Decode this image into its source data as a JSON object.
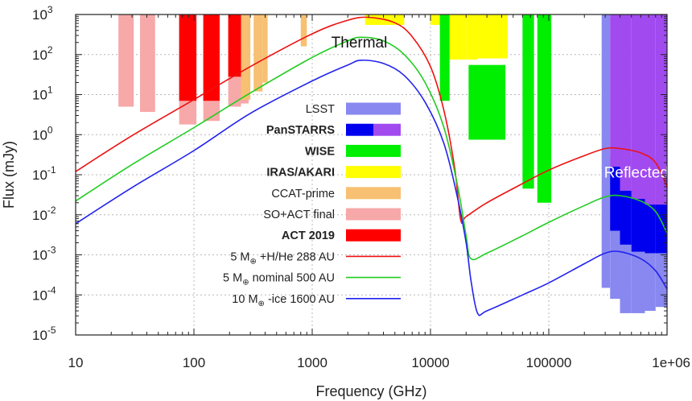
{
  "chart_data": {
    "type": "line",
    "title": "",
    "xlabel": "Frequency (GHz)",
    "ylabel": "Flux (mJy)",
    "x_scale": "log",
    "y_scale": "log",
    "xlim": [
      10,
      1000000
    ],
    "ylim": [
      1e-05,
      1000
    ],
    "grid": true,
    "legend_position": "center",
    "x_ticks": [
      {
        "value": 10,
        "label": "10"
      },
      {
        "value": 100,
        "label": "100"
      },
      {
        "value": 1000,
        "label": "1000"
      },
      {
        "value": 10000,
        "label": "10000"
      },
      {
        "value": 100000,
        "label": "100000"
      },
      {
        "value": 1000000,
        "label": "1e+06"
      }
    ],
    "y_ticks": [
      {
        "value": 1e-05,
        "mant": "10",
        "exp": "-5"
      },
      {
        "value": 0.0001,
        "mant": "10",
        "exp": "-4"
      },
      {
        "value": 0.001,
        "mant": "10",
        "exp": "-3"
      },
      {
        "value": 0.01,
        "mant": "10",
        "exp": "-2"
      },
      {
        "value": 0.1,
        "mant": "10",
        "exp": "-1"
      },
      {
        "value": 1,
        "mant": "10",
        "exp": "0"
      },
      {
        "value": 10,
        "mant": "10",
        "exp": "1"
      },
      {
        "value": 100,
        "mant": "10",
        "exp": "2"
      },
      {
        "value": 1000,
        "mant": "10",
        "exp": "3"
      }
    ],
    "annotations": [
      {
        "text": "Thermal",
        "x": 2500,
        "y": 150,
        "color": "#111111"
      },
      {
        "text": "Reflected",
        "x": 550000,
        "y": 0.085,
        "color": "#ffffff"
      }
    ],
    "sensitivity_regions": [
      {
        "name": "SO+ACT final",
        "color": "#f7a8a8",
        "bands": [
          {
            "x0": 23,
            "x1": 31,
            "y_min": 5,
            "y_max": 1000
          },
          {
            "x0": 35,
            "x1": 47,
            "y_min": 3.7,
            "y_max": 1000
          },
          {
            "x0": 75,
            "x1": 105,
            "y_min": 1.8,
            "y_max": 1000
          },
          {
            "x0": 120,
            "x1": 165,
            "y_min": 2.2,
            "y_max": 1000
          },
          {
            "x0": 195,
            "x1": 250,
            "y_min": 5,
            "y_max": 1000
          },
          {
            "x0": 250,
            "x1": 290,
            "y_min": 6,
            "y_max": 1000
          }
        ]
      },
      {
        "name": "CCAT-prime",
        "color": "#f7c072",
        "bands": [
          {
            "x0": 250,
            "x1": 300,
            "y_min": 7.5,
            "y_max": 1000
          },
          {
            "x0": 320,
            "x1": 380,
            "y_min": 12,
            "y_max": 1000
          },
          {
            "x0": 380,
            "x1": 420,
            "y_min": 20,
            "y_max": 1000
          },
          {
            "x0": 800,
            "x1": 900,
            "y_min": 160,
            "y_max": 1000
          }
        ]
      },
      {
        "name": "ACT 2019",
        "color": "#ff0000",
        "bands": [
          {
            "x0": 75,
            "x1": 105,
            "y_min": 7,
            "y_max": 1000
          },
          {
            "x0": 120,
            "x1": 165,
            "y_min": 7,
            "y_max": 1000
          },
          {
            "x0": 195,
            "x1": 250,
            "y_min": 28,
            "y_max": 1000
          }
        ]
      },
      {
        "name": "IRAS/AKARI",
        "color": "#ffff00",
        "bands": [
          {
            "x0": 2800,
            "x1": 6000,
            "y_min": 550,
            "y_max": 1000
          },
          {
            "x0": 10000,
            "x1": 14500,
            "y_min": 550,
            "y_max": 1000
          },
          {
            "x0": 14500,
            "x1": 20000,
            "y_min": 75,
            "y_max": 1000
          },
          {
            "x0": 20000,
            "x1": 25000,
            "y_min": 75,
            "y_max": 1000
          },
          {
            "x0": 25000,
            "x1": 45000,
            "y_min": 80,
            "y_max": 1000
          }
        ]
      },
      {
        "name": "WISE",
        "color": "#00ee00",
        "bands": [
          {
            "x0": 12000,
            "x1": 14500,
            "y_min": 7,
            "y_max": 1000
          },
          {
            "x0": 21000,
            "x1": 43000,
            "y_min": 0.75,
            "y_max": 55
          },
          {
            "x0": 60000,
            "x1": 75000,
            "y_min": 0.045,
            "y_max": 1000
          },
          {
            "x0": 80000,
            "x1": 105000,
            "y_min": 0.02,
            "y_max": 1000
          }
        ]
      },
      {
        "name": "LSST",
        "color": "#8888f0",
        "bands": [
          {
            "x0": 280000,
            "x1": 330000,
            "y_min": 0.00015,
            "y_max": 1000
          },
          {
            "x0": 330000,
            "x1": 400000,
            "y_min": 8e-05,
            "y_max": 0.3
          },
          {
            "x0": 400000,
            "x1": 500000,
            "y_min": 3.5e-05,
            "y_max": 0.3
          },
          {
            "x0": 500000,
            "x1": 650000,
            "y_min": 3.5e-05,
            "y_max": 0.3
          },
          {
            "x0": 650000,
            "x1": 800000,
            "y_min": 4e-05,
            "y_max": 0.3
          },
          {
            "x0": 800000,
            "x1": 1000000,
            "y_min": 5e-05,
            "y_max": 0.3
          }
        ]
      },
      {
        "name": "PanSTAARS (blue)",
        "color": "#0000ee",
        "bands": [
          {
            "x0": 330000,
            "x1": 400000,
            "y_min": 0.004,
            "y_max": 0.16
          },
          {
            "x0": 400000,
            "x1": 500000,
            "y_min": 0.0018,
            "y_max": 0.04
          },
          {
            "x0": 500000,
            "x1": 650000,
            "y_min": 0.0012,
            "y_max": 0.025
          },
          {
            "x0": 650000,
            "x1": 800000,
            "y_min": 0.0011,
            "y_max": 0.018
          },
          {
            "x0": 800000,
            "x1": 1000000,
            "y_min": 0.0011,
            "y_max": 0.018
          }
        ]
      },
      {
        "name": "PanSTAARS (purple)",
        "color": "#a14af0",
        "bands": [
          {
            "x0": 330000,
            "x1": 400000,
            "y_min": 0.16,
            "y_max": 1000
          },
          {
            "x0": 400000,
            "x1": 500000,
            "y_min": 0.04,
            "y_max": 1000
          },
          {
            "x0": 500000,
            "x1": 650000,
            "y_min": 0.025,
            "y_max": 1000
          },
          {
            "x0": 650000,
            "x1": 800000,
            "y_min": 0.018,
            "y_max": 1000
          },
          {
            "x0": 800000,
            "x1": 1000000,
            "y_min": 0.018,
            "y_max": 1000
          }
        ]
      }
    ],
    "series": [
      {
        "name": "5 M⊕ +H/He 288 AU",
        "color": "#ee1111",
        "points": [
          [
            10,
            0.12
          ],
          [
            30,
            0.95
          ],
          [
            100,
            7.5
          ],
          [
            300,
            50
          ],
          [
            1000,
            330
          ],
          [
            2000,
            720
          ],
          [
            3000,
            850
          ],
          [
            5000,
            620
          ],
          [
            7000,
            280
          ],
          [
            10000,
            50
          ],
          [
            13000,
            4
          ],
          [
            16000,
            0.15
          ],
          [
            18000,
            0.0075
          ],
          [
            20000,
            0.009
          ],
          [
            30000,
            0.02
          ],
          [
            60000,
            0.06
          ],
          [
            100000,
            0.13
          ],
          [
            200000,
            0.3
          ],
          [
            300000,
            0.45
          ],
          [
            400000,
            0.45
          ],
          [
            600000,
            0.35
          ],
          [
            800000,
            0.2
          ],
          [
            1000000,
            0.05
          ]
        ]
      },
      {
        "name": "5 M⊕ nominal 500 AU",
        "color": "#22cc22",
        "points": [
          [
            10,
            0.022
          ],
          [
            30,
            0.18
          ],
          [
            100,
            1.5
          ],
          [
            300,
            11
          ],
          [
            1000,
            85
          ],
          [
            2000,
            220
          ],
          [
            2600,
            270
          ],
          [
            4000,
            220
          ],
          [
            6000,
            100
          ],
          [
            9000,
            20
          ],
          [
            13000,
            1.5
          ],
          [
            17000,
            0.05
          ],
          [
            20000,
            0.003
          ],
          [
            22000,
            0.0008
          ],
          [
            30000,
            0.0011
          ],
          [
            60000,
            0.003
          ],
          [
            100000,
            0.0065
          ],
          [
            200000,
            0.017
          ],
          [
            300000,
            0.028
          ],
          [
            400000,
            0.03
          ],
          [
            600000,
            0.022
          ],
          [
            800000,
            0.012
          ],
          [
            1000000,
            0.0035
          ]
        ]
      },
      {
        "name": "10 M⊕ -ice 1600 AU",
        "color": "#2222ee",
        "points": [
          [
            10,
            0.006
          ],
          [
            30,
            0.048
          ],
          [
            100,
            0.4
          ],
          [
            300,
            3.4
          ],
          [
            1000,
            22
          ],
          [
            2000,
            55
          ],
          [
            2600,
            72
          ],
          [
            4000,
            60
          ],
          [
            6000,
            30
          ],
          [
            9000,
            6.5
          ],
          [
            13000,
            0.6
          ],
          [
            17000,
            0.025
          ],
          [
            20000,
            0.002
          ],
          [
            22000,
            0.00023
          ],
          [
            25000,
            3.5e-05
          ],
          [
            30000,
            4e-05
          ],
          [
            60000,
            0.0001
          ],
          [
            100000,
            0.0002
          ],
          [
            200000,
            0.0006
          ],
          [
            300000,
            0.0011
          ],
          [
            400000,
            0.0012
          ],
          [
            600000,
            0.0008
          ],
          [
            800000,
            0.0004
          ],
          [
            1000000,
            0.00014
          ]
        ]
      }
    ],
    "legend": {
      "items": [
        {
          "type": "box",
          "label": "LSST",
          "bold": false,
          "colors": [
            "#8888f0"
          ]
        },
        {
          "type": "box",
          "label": "PanSTARRS",
          "bold": true,
          "colors": [
            "#0000ee",
            "#a14af0"
          ]
        },
        {
          "type": "box",
          "label": "WISE",
          "bold": true,
          "colors": [
            "#00ee00"
          ]
        },
        {
          "type": "box",
          "label": "IRAS/AKARI",
          "bold": true,
          "colors": [
            "#ffff00"
          ]
        },
        {
          "type": "box",
          "label": "CCAT-prime",
          "bold": false,
          "colors": [
            "#f7c072"
          ]
        },
        {
          "type": "box",
          "label": "SO+ACT final",
          "bold": false,
          "colors": [
            "#f7a8a8"
          ]
        },
        {
          "type": "box",
          "label": "ACT 2019",
          "bold": true,
          "colors": [
            "#ff0000"
          ]
        },
        {
          "type": "line",
          "label": "5 M",
          "sub": "⊕",
          "rest": " +H/He 288 AU",
          "bold": false,
          "colors": [
            "#ee1111"
          ]
        },
        {
          "type": "line",
          "label": "5 M",
          "sub": "⊕",
          "rest": " nominal 500 AU",
          "bold": false,
          "colors": [
            "#22cc22"
          ]
        },
        {
          "type": "line",
          "label": "10 M",
          "sub": "⊕",
          "rest": " -ice 1600 AU",
          "bold": false,
          "colors": [
            "#2222ee"
          ]
        }
      ]
    }
  }
}
